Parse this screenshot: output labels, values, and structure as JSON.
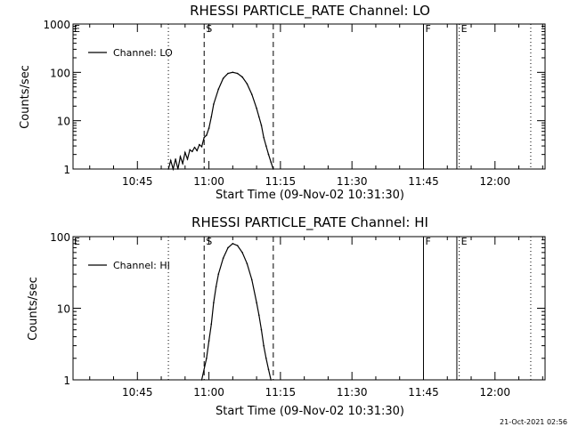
{
  "figure": {
    "timestamp": "21-Oct-2021 02:56",
    "colors": {
      "background": "#ffffff",
      "foreground": "#000000"
    }
  },
  "chart_data": [
    {
      "type": "line",
      "title": "RHESSI PARTICLE_RATE Channel: LO",
      "xlabel": "Start Time (09-Nov-02 10:31:30)",
      "ylabel": "Counts/sec",
      "yscale": "log",
      "ylim": [
        1,
        1000
      ],
      "xlim": [
        "10:31:30",
        "12:10:30"
      ],
      "yticks": [
        {
          "value": 1,
          "label": "1"
        },
        {
          "value": 10,
          "label": "10"
        },
        {
          "value": 100,
          "label": "100"
        },
        {
          "value": 1000,
          "label": "1000"
        }
      ],
      "xticks": [
        {
          "time": "10:45",
          "label": "10:45"
        },
        {
          "time": "11:00",
          "label": "11:00"
        },
        {
          "time": "11:15",
          "label": "11:15"
        },
        {
          "time": "11:30",
          "label": "11:30"
        },
        {
          "time": "11:45",
          "label": "11:45"
        },
        {
          "time": "12:00",
          "label": "12:00"
        }
      ],
      "series": [
        {
          "name": "Channel: LO",
          "x": [
            "10:51:30",
            "10:52:00",
            "10:52:30",
            "10:53:00",
            "10:53:30",
            "10:54:00",
            "10:54:30",
            "10:55:00",
            "10:55:30",
            "10:56:00",
            "10:56:30",
            "10:57:00",
            "10:57:30",
            "10:58:00",
            "10:58:30",
            "10:59:00",
            "10:59:30",
            "11:00:00",
            "11:00:30",
            "11:01:00",
            "11:02:00",
            "11:03:00",
            "11:04:00",
            "11:05:00",
            "11:06:00",
            "11:07:00",
            "11:08:00",
            "11:09:00",
            "11:10:00",
            "11:10:30",
            "11:11:00",
            "11:11:30",
            "11:12:00",
            "11:12:30",
            "11:13:00",
            "11:13:30"
          ],
          "values": [
            1,
            1.5,
            1,
            1.6,
            1,
            1.8,
            1.3,
            2.2,
            1.6,
            2.5,
            2.3,
            2.8,
            2.4,
            3.2,
            2.9,
            4.5,
            5,
            7,
            12,
            22,
            45,
            75,
            95,
            100,
            95,
            80,
            58,
            35,
            18,
            12,
            8,
            4.5,
            3,
            2,
            1.4,
            1
          ]
        }
      ],
      "markers": [
        {
          "time": "10:51:30",
          "style": "dotted",
          "label": ""
        },
        {
          "time": "10:59:00",
          "style": "dashed",
          "label": "S"
        },
        {
          "time": "11:13:30",
          "style": "dashed",
          "label": ""
        },
        {
          "time": "11:45:00",
          "style": "solid",
          "label": "F"
        },
        {
          "time": "11:52:00",
          "style": "solid",
          "label": ""
        },
        {
          "time": "11:52:30",
          "style": "dotted",
          "label": "E"
        },
        {
          "time": "12:07:30",
          "style": "dotted",
          "label": ""
        }
      ],
      "edge_label": "E",
      "legend": {
        "position": "top-left",
        "label": "Channel: LO"
      }
    },
    {
      "type": "line",
      "title": "RHESSI PARTICLE_RATE Channel: HI",
      "xlabel": "Start Time (09-Nov-02 10:31:30)",
      "ylabel": "Counts/sec",
      "yscale": "log",
      "ylim": [
        1,
        100
      ],
      "xlim": [
        "10:31:30",
        "12:10:30"
      ],
      "yticks": [
        {
          "value": 1,
          "label": "1"
        },
        {
          "value": 10,
          "label": "10"
        },
        {
          "value": 100,
          "label": "100"
        }
      ],
      "xticks": [
        {
          "time": "10:45",
          "label": "10:45"
        },
        {
          "time": "11:00",
          "label": "11:00"
        },
        {
          "time": "11:15",
          "label": "11:15"
        },
        {
          "time": "11:30",
          "label": "11:30"
        },
        {
          "time": "11:45",
          "label": "11:45"
        },
        {
          "time": "12:00",
          "label": "12:00"
        }
      ],
      "series": [
        {
          "name": "Channel: HI",
          "x": [
            "10:58:30",
            "10:59:30",
            "11:00:00",
            "11:00:30",
            "11:01:00",
            "11:01:30",
            "11:02:00",
            "11:03:00",
            "11:04:00",
            "11:05:00",
            "11:06:00",
            "11:07:00",
            "11:08:00",
            "11:09:00",
            "11:10:00",
            "11:10:30",
            "11:11:00",
            "11:11:30",
            "11:12:00",
            "11:12:30",
            "11:13:00"
          ],
          "values": [
            1,
            2,
            3.5,
            6,
            12,
            20,
            30,
            50,
            70,
            80,
            75,
            60,
            42,
            25,
            12,
            8,
            5,
            3,
            2,
            1.4,
            1
          ]
        }
      ],
      "markers": [
        {
          "time": "10:51:30",
          "style": "dotted",
          "label": ""
        },
        {
          "time": "10:59:00",
          "style": "dashed",
          "label": "S"
        },
        {
          "time": "11:13:30",
          "style": "dashed",
          "label": ""
        },
        {
          "time": "11:45:00",
          "style": "solid",
          "label": "F"
        },
        {
          "time": "11:52:00",
          "style": "solid",
          "label": ""
        },
        {
          "time": "11:52:30",
          "style": "dotted",
          "label": "E"
        },
        {
          "time": "12:07:30",
          "style": "dotted",
          "label": ""
        }
      ],
      "edge_label": "E",
      "legend": {
        "position": "top-left",
        "label": "Channel: HI"
      }
    }
  ]
}
